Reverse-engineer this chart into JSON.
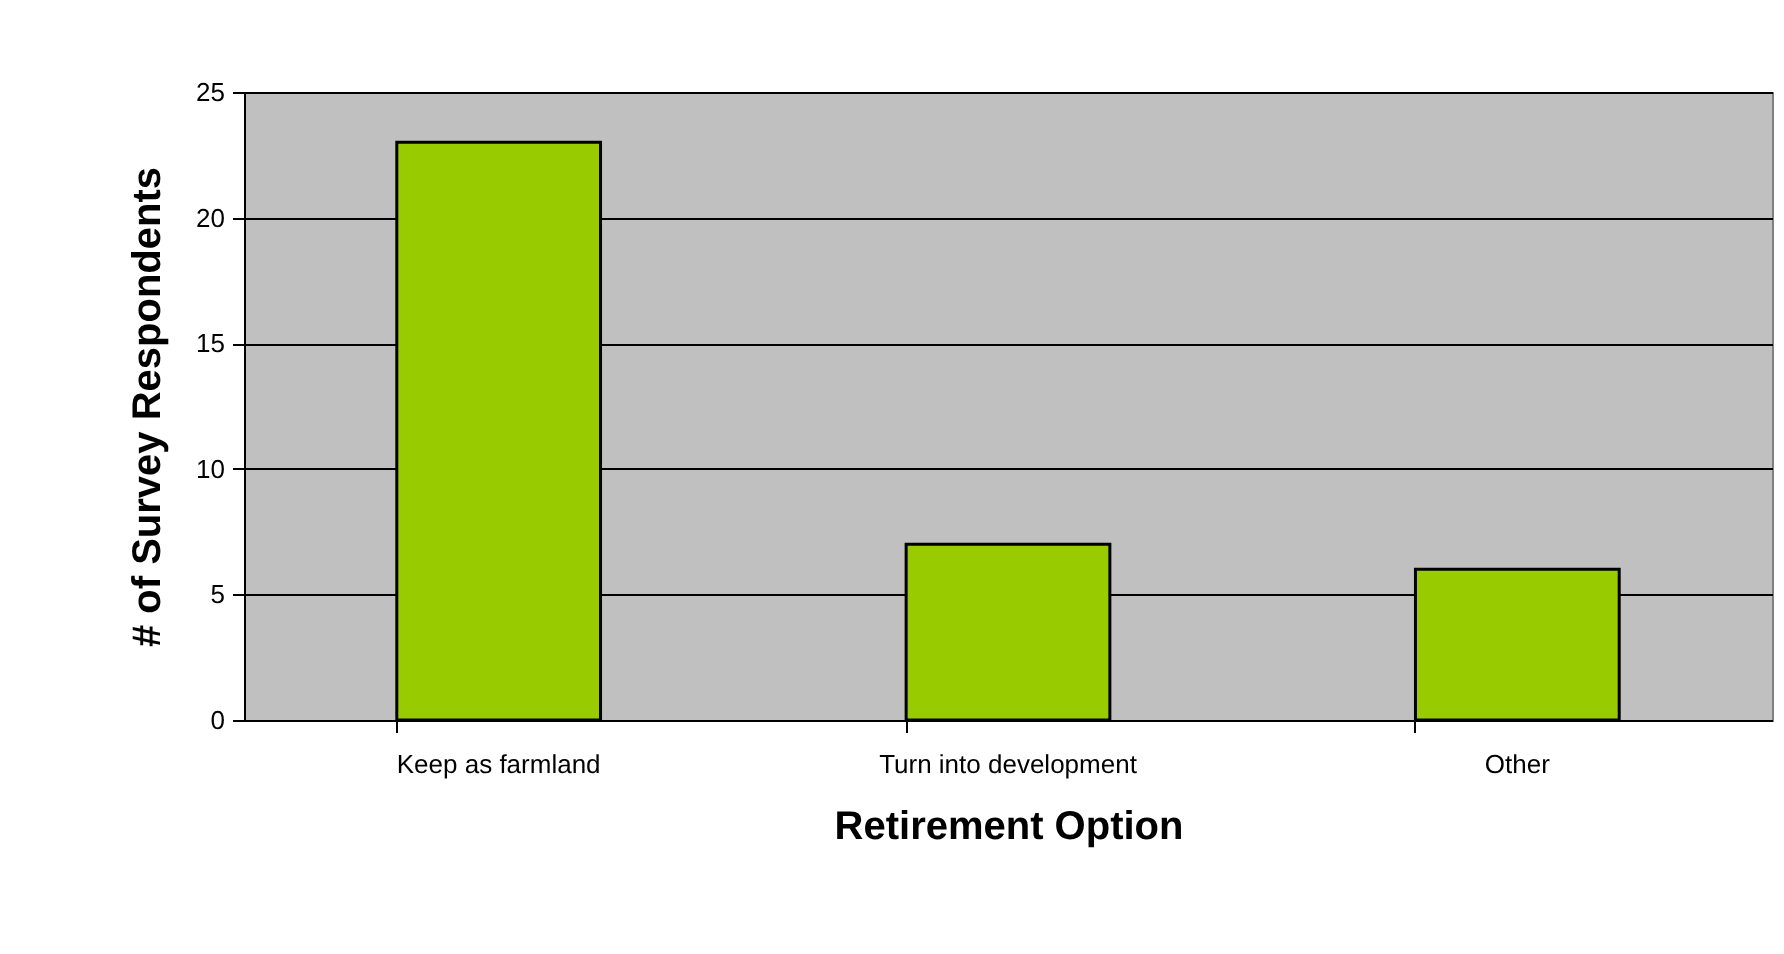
{
  "chart_data": {
    "type": "bar",
    "xlabel": "Retirement Option",
    "ylabel": "# of Survey Respondents",
    "categories": [
      "Keep as farmland",
      "Turn into development",
      "Other"
    ],
    "values": [
      23,
      7,
      6
    ],
    "color": "#99cc00",
    "ylim": [
      0,
      25
    ],
    "yticks": [
      0,
      5,
      10,
      15,
      20,
      25
    ],
    "grid": "y"
  }
}
